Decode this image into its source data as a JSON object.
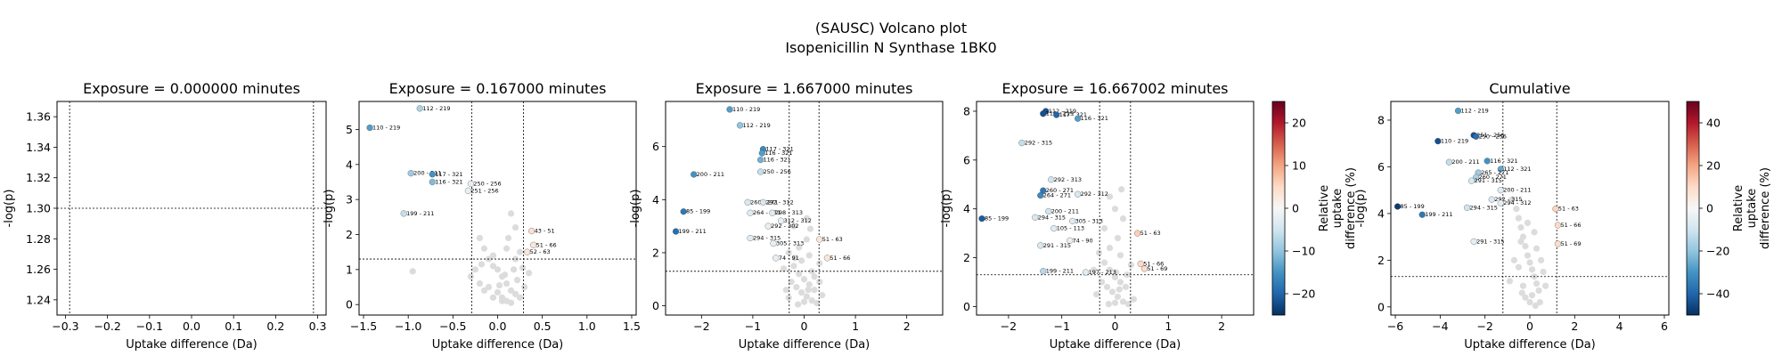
{
  "figure": {
    "title_line1": "(SAUSC) Volcano plot",
    "title_line2": "Isopenicillin N Synthase 1BK0"
  },
  "chart_data": [
    {
      "type": "scatter",
      "title": "Exposure = 0.000000 minutes",
      "xlabel": "Uptake difference (Da)",
      "ylabel": "-log(p)",
      "xlim": [
        -0.32,
        0.32
      ],
      "ylim": [
        1.23,
        1.37
      ],
      "xticks": [
        -0.3,
        -0.2,
        -0.1,
        0.0,
        0.1,
        0.2,
        0.3
      ],
      "xtick_labels": [
        "−0.3",
        "−0.2",
        "−0.1",
        "0.0",
        "0.1",
        "0.2",
        "0.3"
      ],
      "yticks": [
        1.24,
        1.26,
        1.28,
        1.3,
        1.32,
        1.34,
        1.36
      ],
      "ytick_labels": [
        "1.24",
        "1.26",
        "1.28",
        "1.30",
        "1.32",
        "1.34",
        "1.36"
      ],
      "threshold_x": [
        -0.29,
        0.29
      ],
      "threshold_y": 1.3,
      "grey_points": [],
      "points": []
    },
    {
      "type": "scatter",
      "title": "Exposure = 0.167000 minutes",
      "xlabel": "Uptake difference (Da)",
      "ylabel": "-log(p)",
      "xlim": [
        -1.55,
        1.55
      ],
      "ylim": [
        -0.3,
        5.8
      ],
      "xticks": [
        -1.5,
        -1.0,
        -0.5,
        0.0,
        0.5,
        1.0,
        1.5
      ],
      "xtick_labels": [
        "−1.5",
        "−1.0",
        "−0.5",
        "0.0",
        "0.5",
        "1.0",
        "1.5"
      ],
      "yticks": [
        0,
        1,
        2,
        3,
        4,
        5
      ],
      "ytick_labels": [
        "0",
        "1",
        "2",
        "3",
        "4",
        "5"
      ],
      "threshold_x": [
        -0.29,
        0.29
      ],
      "threshold_y": 1.3,
      "grey_points": [
        [
          -0.95,
          0.95
        ],
        [
          -0.2,
          1.9
        ],
        [
          -0.15,
          1.6
        ],
        [
          -0.1,
          1.3
        ],
        [
          -0.05,
          1.1
        ],
        [
          0,
          1
        ],
        [
          0.05,
          0.8
        ],
        [
          0.1,
          0.6
        ],
        [
          0.15,
          0.4
        ],
        [
          0.2,
          0.3
        ],
        [
          0.25,
          0.2
        ],
        [
          -0.25,
          1.0
        ],
        [
          -0.3,
          0.8
        ],
        [
          -0.2,
          0.6
        ],
        [
          -0.1,
          0.5
        ],
        [
          0,
          0.35
        ],
        [
          0.05,
          0.2
        ],
        [
          0.1,
          0.1
        ],
        [
          0.15,
          0.05
        ],
        [
          0.2,
          1.3
        ],
        [
          0.25,
          1.5
        ],
        [
          0.1,
          1.6
        ],
        [
          -0.05,
          1.4
        ],
        [
          0.18,
          1.0
        ],
        [
          0.22,
          0.7
        ],
        [
          0.3,
          0.5
        ],
        [
          0.35,
          0.9
        ],
        [
          0.15,
          2.6
        ],
        [
          0.2,
          2.2
        ],
        [
          0.05,
          0.1
        ],
        [
          -0.05,
          0.2
        ],
        [
          -0.15,
          0.4
        ],
        [
          0.02,
          0.55
        ],
        [
          0.08,
          0.85
        ],
        [
          -0.18,
          1.15
        ],
        [
          0.28,
          1.05
        ],
        [
          0.12,
          1.9
        ]
      ],
      "points": [
        {
          "label": "112 - 219",
          "x": -0.87,
          "y": 5.6,
          "d": -8
        },
        {
          "label": "110 - 219",
          "x": -1.43,
          "y": 5.05,
          "d": -14
        },
        {
          "label": "200 - 211",
          "x": -0.97,
          "y": 3.75,
          "d": -9
        },
        {
          "label": "117 - 321",
          "x": -0.73,
          "y": 3.72,
          "d": -15
        },
        {
          "label": "116 - 321",
          "x": -0.73,
          "y": 3.5,
          "d": -11
        },
        {
          "label": "250 - 256",
          "x": -0.3,
          "y": 3.45,
          "d": -2
        },
        {
          "label": "251 - 256",
          "x": -0.33,
          "y": 3.25,
          "d": -2
        },
        {
          "label": "199 - 211",
          "x": -1.05,
          "y": 2.6,
          "d": -6
        },
        {
          "label": "43 - 51",
          "x": 0.38,
          "y": 2.1,
          "d": 4
        },
        {
          "label": "51 - 66",
          "x": 0.4,
          "y": 1.7,
          "d": 3
        },
        {
          "label": "52 - 63",
          "x": 0.33,
          "y": 1.5,
          "d": 3
        }
      ]
    },
    {
      "type": "scatter",
      "title": "Exposure = 1.667000 minutes",
      "xlabel": "Uptake difference (Da)",
      "ylabel": "-log(p)",
      "xlim": [
        -2.7,
        2.7
      ],
      "ylim": [
        -0.35,
        7.7
      ],
      "xticks": [
        -2,
        -1,
        0,
        1,
        2
      ],
      "xtick_labels": [
        "−2",
        "−1",
        "0",
        "1",
        "2"
      ],
      "yticks": [
        0,
        2,
        4,
        6
      ],
      "ytick_labels": [
        "0",
        "2",
        "4",
        "6"
      ],
      "threshold_x": [
        -0.29,
        0.29
      ],
      "threshold_y": 1.3,
      "grey_points": [
        [
          -0.3,
          2.0
        ],
        [
          -0.2,
          1.5
        ],
        [
          -0.1,
          1.2
        ],
        [
          0,
          1
        ],
        [
          0.1,
          0.8
        ],
        [
          0.2,
          0.6
        ],
        [
          -0.25,
          0.9
        ],
        [
          -0.15,
          0.7
        ],
        [
          -0.05,
          0.5
        ],
        [
          0.05,
          0.35
        ],
        [
          0.15,
          0.2
        ],
        [
          0.25,
          0.1
        ],
        [
          -0.4,
          1.4
        ],
        [
          0.3,
          1.6
        ],
        [
          0.1,
          1.9
        ],
        [
          -0.1,
          2.2
        ],
        [
          0.05,
          2.5
        ],
        [
          -0.2,
          3.0
        ],
        [
          0.15,
          1.3
        ],
        [
          0.3,
          0.9
        ],
        [
          -0.35,
          0.6
        ],
        [
          0,
          0.15
        ],
        [
          -0.05,
          1.7
        ],
        [
          0.2,
          1.1
        ],
        [
          0.35,
          0.4
        ],
        [
          -0.3,
          0.3
        ],
        [
          0.12,
          2.9
        ],
        [
          0.05,
          3.3
        ],
        [
          -0.12,
          0.05
        ],
        [
          0.08,
          0.6
        ],
        [
          -0.18,
          1.8
        ]
      ],
      "points": [
        {
          "label": "110 - 219",
          "x": -1.45,
          "y": 7.4,
          "d": -14
        },
        {
          "label": "112 - 219",
          "x": -1.25,
          "y": 6.8,
          "d": -10
        },
        {
          "label": "117 - 321",
          "x": -0.8,
          "y": 5.9,
          "d": -16
        },
        {
          "label": "116 - 321",
          "x": -0.82,
          "y": 5.75,
          "d": -14
        },
        {
          "label": "116 - 321",
          "x": -0.85,
          "y": 5.5,
          "d": -12
        },
        {
          "label": "250 - 256",
          "x": -0.85,
          "y": 5.05,
          "d": -6
        },
        {
          "label": "200 - 211",
          "x": -2.15,
          "y": 4.95,
          "d": -15
        },
        {
          "label": "260 - 271",
          "x": -1.1,
          "y": 3.9,
          "d": -4
        },
        {
          "label": "292 - 312",
          "x": -0.8,
          "y": 3.9,
          "d": -4
        },
        {
          "label": "85 - 199",
          "x": -2.35,
          "y": 3.55,
          "d": -18
        },
        {
          "label": "264 - 271",
          "x": -1.05,
          "y": 3.5,
          "d": -3
        },
        {
          "label": "298 - 313",
          "x": -0.62,
          "y": 3.5,
          "d": -3
        },
        {
          "label": "199 - 211",
          "x": -2.5,
          "y": 2.8,
          "d": -19
        },
        {
          "label": "312 - 312",
          "x": -0.45,
          "y": 3.2,
          "d": -2
        },
        {
          "label": "292 - 302",
          "x": -0.7,
          "y": 3.0,
          "d": -2
        },
        {
          "label": "294 - 315",
          "x": -1.05,
          "y": 2.55,
          "d": -3
        },
        {
          "label": "305 - 313",
          "x": -0.6,
          "y": 2.35,
          "d": -2
        },
        {
          "label": "74 - 91",
          "x": -0.55,
          "y": 1.8,
          "d": -2
        },
        {
          "label": "51 - 63",
          "x": 0.3,
          "y": 2.5,
          "d": 3
        },
        {
          "label": "51 - 66",
          "x": 0.45,
          "y": 1.8,
          "d": 3
        }
      ]
    },
    {
      "type": "scatter",
      "title": "Exposure = 16.667002 minutes",
      "xlabel": "Uptake difference (Da)",
      "ylabel": "-log(p)",
      "xlim": [
        -2.6,
        2.6
      ],
      "ylim": [
        -0.35,
        8.4
      ],
      "xticks": [
        -2,
        -1,
        0,
        1,
        2
      ],
      "xtick_labels": [
        "−2",
        "−1",
        "0",
        "1",
        "2"
      ],
      "yticks": [
        0,
        2,
        4,
        6,
        8
      ],
      "ytick_labels": [
        "0",
        "2",
        "4",
        "6",
        "8"
      ],
      "threshold_x": [
        -0.29,
        0.29
      ],
      "threshold_y": 1.3,
      "colorbar": {
        "min": -25,
        "max": 25,
        "ticks": [
          -20,
          -10,
          0,
          10,
          20
        ],
        "label_lines": [
          "Relative",
          "uptake",
          "difference (%)"
        ]
      },
      "grey_points": [
        [
          -0.3,
          2.2
        ],
        [
          -0.2,
          1.8
        ],
        [
          -0.1,
          1.5
        ],
        [
          0,
          1.2
        ],
        [
          0.1,
          1.0
        ],
        [
          0.2,
          0.8
        ],
        [
          -0.25,
          1.0
        ],
        [
          -0.15,
          0.8
        ],
        [
          -0.05,
          0.6
        ],
        [
          0.05,
          0.4
        ],
        [
          0.15,
          0.2
        ],
        [
          0.25,
          0.1
        ],
        [
          -0.4,
          1.5
        ],
        [
          0.3,
          1.7
        ],
        [
          0.1,
          2.1
        ],
        [
          -0.1,
          2.4
        ],
        [
          0.05,
          2.8
        ],
        [
          -0.2,
          3.2
        ],
        [
          0.15,
          3.6
        ],
        [
          0,
          4.0
        ],
        [
          -0.1,
          4.5
        ],
        [
          0.12,
          4.8
        ],
        [
          0.02,
          1.4
        ],
        [
          -0.35,
          0.5
        ],
        [
          0.35,
          0.3
        ],
        [
          0,
          0.15
        ],
        [
          -0.12,
          0.1
        ],
        [
          0.08,
          0.7
        ],
        [
          0.22,
          1.3
        ]
      ],
      "points": [
        {
          "label": "112 - 219",
          "x": -1.3,
          "y": 8.0,
          "d": -22
        },
        {
          "label": "110 - 219",
          "x": -1.35,
          "y": 7.9,
          "d": -22
        },
        {
          "label": "117 - 321",
          "x": -1.1,
          "y": 7.85,
          "d": -20
        },
        {
          "label": "116 - 321",
          "x": -0.7,
          "y": 7.7,
          "d": -14
        },
        {
          "label": "292 - 315",
          "x": -1.75,
          "y": 6.7,
          "d": -6
        },
        {
          "label": "292 - 313",
          "x": -1.2,
          "y": 5.2,
          "d": -5
        },
        {
          "label": "260 - 271",
          "x": -1.35,
          "y": 4.75,
          "d": -18
        },
        {
          "label": "264 - 271",
          "x": -1.4,
          "y": 4.55,
          "d": -16
        },
        {
          "label": "292 - 312",
          "x": -0.7,
          "y": 4.6,
          "d": -4
        },
        {
          "label": "85 - 199",
          "x": -2.5,
          "y": 3.6,
          "d": -21
        },
        {
          "label": "294 - 315",
          "x": -1.5,
          "y": 3.65,
          "d": -4
        },
        {
          "label": "200 - 211",
          "x": -1.25,
          "y": 3.9,
          "d": -5
        },
        {
          "label": "305 - 313",
          "x": -0.8,
          "y": 3.5,
          "d": -3
        },
        {
          "label": "105 - 113",
          "x": -1.15,
          "y": 3.2,
          "d": -3
        },
        {
          "label": "74 - 90",
          "x": -0.85,
          "y": 2.7,
          "d": -2
        },
        {
          "label": "291 - 315",
          "x": -1.4,
          "y": 2.5,
          "d": -4
        },
        {
          "label": "51 - 63",
          "x": 0.42,
          "y": 3.0,
          "d": 6
        },
        {
          "label": "51 - 66",
          "x": 0.48,
          "y": 1.75,
          "d": 5
        },
        {
          "label": "51 - 69",
          "x": 0.55,
          "y": 1.55,
          "d": 5
        },
        {
          "label": "199 - 211",
          "x": -1.35,
          "y": 1.45,
          "d": -7
        },
        {
          "label": "197 - 213",
          "x": -0.55,
          "y": 1.4,
          "d": -3
        }
      ]
    },
    {
      "type": "scatter",
      "title": "Cumulative",
      "xlabel": "Uptake difference (Da)",
      "ylabel": "-log(p)",
      "xlim": [
        -6.2,
        6.2
      ],
      "ylim": [
        -0.35,
        8.8
      ],
      "xticks": [
        -6,
        -4,
        -2,
        0,
        2,
        4,
        6
      ],
      "xtick_labels": [
        "−6",
        "−4",
        "−2",
        "0",
        "2",
        "4",
        "6"
      ],
      "yticks": [
        0,
        2,
        4,
        6,
        8
      ],
      "ytick_labels": [
        "0",
        "2",
        "4",
        "6",
        "8"
      ],
      "threshold_x": [
        -1.2,
        1.2
      ],
      "threshold_y": 1.3,
      "colorbar": {
        "min": -50,
        "max": 50,
        "ticks": [
          -40,
          -20,
          0,
          20,
          40
        ],
        "label_lines": [
          "Relative",
          "uptake",
          "difference (%)"
        ]
      },
      "grey_points": [
        [
          -0.8,
          4.6
        ],
        [
          -0.6,
          4.2
        ],
        [
          -0.5,
          3.8
        ],
        [
          -0.4,
          3.4
        ],
        [
          -0.3,
          3.0
        ],
        [
          -0.2,
          2.6
        ],
        [
          -0.1,
          2.2
        ],
        [
          0,
          1.9
        ],
        [
          0.1,
          1.6
        ],
        [
          0.2,
          1.3
        ],
        [
          0.3,
          1.0
        ],
        [
          0.4,
          0.7
        ],
        [
          -0.5,
          1.7
        ],
        [
          -0.7,
          2.0
        ],
        [
          0.5,
          2.0
        ],
        [
          0.6,
          1.5
        ],
        [
          -0.3,
          0.9
        ],
        [
          0.1,
          0.5
        ],
        [
          0,
          0.2
        ],
        [
          -0.2,
          0.4
        ],
        [
          0.3,
          2.5
        ],
        [
          -0.4,
          2.8
        ],
        [
          0.2,
          3.2
        ],
        [
          -0.1,
          3.6
        ],
        [
          0.45,
          0.2
        ],
        [
          0.7,
          0.9
        ],
        [
          -0.9,
          1.1
        ],
        [
          0.25,
          0.05
        ],
        [
          -0.35,
          0.6
        ]
      ],
      "points": [
        {
          "label": "112 - 219",
          "x": -3.2,
          "y": 8.4,
          "d": -28
        },
        {
          "label": "251 - 256",
          "x": -2.5,
          "y": 7.35,
          "d": -44
        },
        {
          "label": "250 - 256",
          "x": -2.4,
          "y": 7.3,
          "d": -38
        },
        {
          "label": "110 - 219",
          "x": -4.1,
          "y": 7.1,
          "d": -44
        },
        {
          "label": "200 - 211",
          "x": -3.6,
          "y": 6.2,
          "d": -12
        },
        {
          "label": "116 - 321",
          "x": -1.9,
          "y": 6.25,
          "d": -30
        },
        {
          "label": "112 - 321",
          "x": -1.3,
          "y": 5.9,
          "d": -26
        },
        {
          "label": "265 - 271",
          "x": -2.3,
          "y": 5.75,
          "d": -18
        },
        {
          "label": "260 - 271",
          "x": -2.4,
          "y": 5.55,
          "d": -16
        },
        {
          "label": "291 - 315",
          "x": -2.6,
          "y": 5.4,
          "d": -8
        },
        {
          "label": "200 - 211",
          "x": -1.3,
          "y": 5.0,
          "d": -6
        },
        {
          "label": "292 - 315",
          "x": -1.7,
          "y": 4.6,
          "d": -8
        },
        {
          "label": "294 - 312",
          "x": -1.3,
          "y": 4.45,
          "d": -5
        },
        {
          "label": "85 - 199",
          "x": -5.9,
          "y": 4.3,
          "d": -48
        },
        {
          "label": "294 - 315",
          "x": -2.8,
          "y": 4.25,
          "d": -10
        },
        {
          "label": "199 - 211",
          "x": -4.8,
          "y": 3.95,
          "d": -36
        },
        {
          "label": "51 - 63",
          "x": 1.15,
          "y": 4.2,
          "d": 11
        },
        {
          "label": "51 - 66",
          "x": 1.25,
          "y": 3.5,
          "d": 10
        },
        {
          "label": "291 - 315",
          "x": -2.5,
          "y": 2.8,
          "d": -5
        },
        {
          "label": "51 - 69",
          "x": 1.25,
          "y": 2.7,
          "d": 9
        }
      ]
    }
  ]
}
